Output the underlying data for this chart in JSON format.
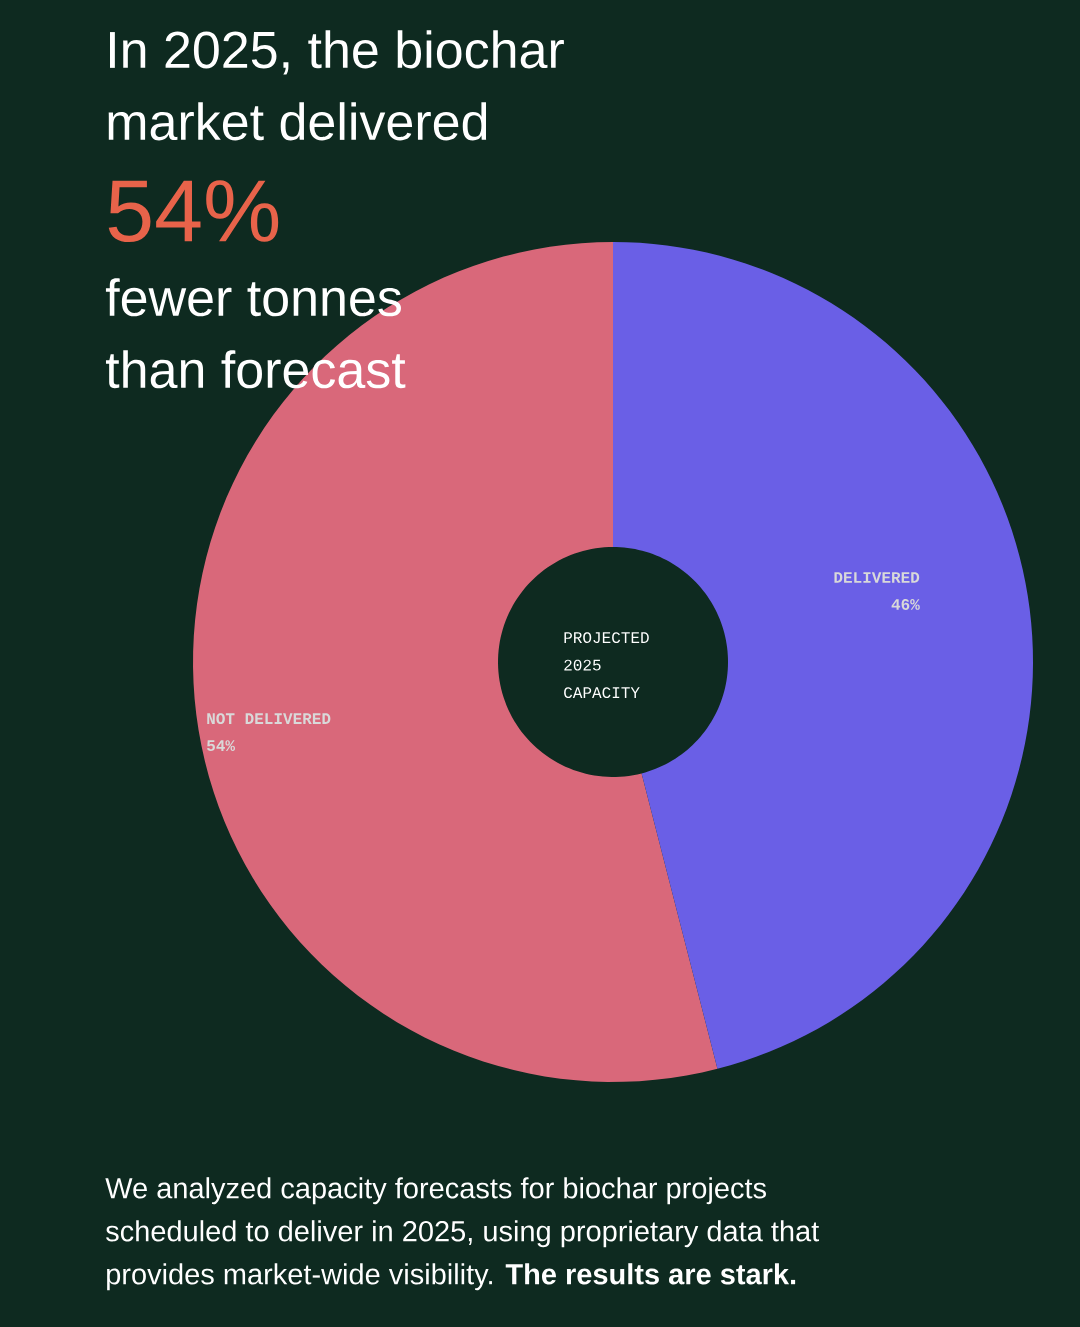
{
  "chart_data": {
    "type": "donut",
    "title": "In 2025, the biochar market delivered",
    "categories": [
      "NOT DELIVERED",
      "DELIVERED"
    ],
    "values": [
      54,
      46
    ],
    "value_labels": [
      "54%",
      "46%"
    ],
    "colors": [
      "#d9687a",
      "#6a5fe6"
    ],
    "annotations": [
      "54%",
      "fewer tonnes than forecast",
      "PROJECTED 2025 CAPACITY",
      "We analyzed capacity forecasts for biochar projects scheduled to deliver in 2025, using proprietary data that provides market-wide visibility. **The results are stark.**"
    ]
  }
}
